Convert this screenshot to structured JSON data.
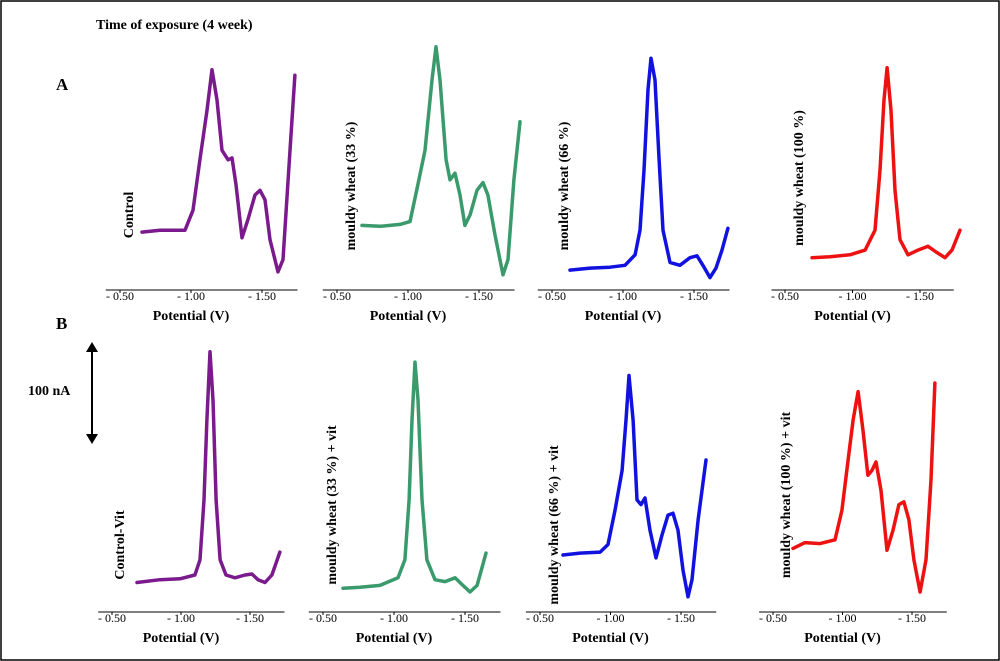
{
  "title": "Time of exposure (4 week)",
  "panel_labels": [
    "A",
    "B"
  ],
  "scale_bar": "100 nA",
  "chart_data": [
    {
      "type": "line",
      "xlabel": "Potential (V)",
      "xlim": [
        -0.4,
        -1.75
      ],
      "ylim": [
        0,
        280
      ],
      "xticks": [
        {
          "value": -0.5,
          "label": "- 0.50"
        },
        {
          "value": -1.0,
          "label": "- 1.00"
        },
        {
          "value": -1.5,
          "label": "- 1.50"
        }
      ],
      "x": [
        -0.655,
        -0.782,
        -0.958,
        -1.014,
        -1.063,
        -1.113,
        -1.148,
        -1.183,
        -1.218,
        -1.261,
        -1.289,
        -1.317,
        -1.359,
        -1.401,
        -1.451,
        -1.486,
        -1.521,
        -1.556,
        -1.613,
        -1.648,
        -1.697,
        -1.732
      ],
      "series": [
        {
          "name": "Control",
          "color": "#7b1a8c",
          "values": [
            61,
            63,
            63,
            84,
            137,
            189,
            232,
            200,
            147,
            137,
            139,
            111,
            55,
            74,
            100,
            105,
            95,
            53,
            19,
            32,
            147,
            226
          ]
        }
      ]
    },
    {
      "type": "line",
      "xlabel": "Potential (V)",
      "xlim": [
        -0.4,
        -1.75
      ],
      "ylim": [
        0,
        280
      ],
      "xticks": [
        {
          "value": -0.5,
          "label": "- 0.50"
        },
        {
          "value": -1.0,
          "label": "- 1.00"
        },
        {
          "value": -1.5,
          "label": "- 1.50"
        }
      ],
      "x": [
        -0.676,
        -0.803,
        -0.944,
        -1.014,
        -1.07,
        -1.12,
        -1.169,
        -1.197,
        -1.225,
        -1.268,
        -1.296,
        -1.331,
        -1.366,
        -1.401,
        -1.437,
        -1.486,
        -1.528,
        -1.563,
        -1.613,
        -1.669,
        -1.704,
        -1.746,
        -1.789
      ],
      "series": [
        {
          "name": "mouldy wheat (33 %)",
          "color": "#3a9a6c",
          "values": [
            68,
            67,
            69,
            72,
            111,
            147,
            221,
            256,
            221,
            137,
            116,
            123,
            100,
            68,
            79,
            105,
            113,
            100,
            58,
            16,
            32,
            116,
            177
          ]
        }
      ]
    },
    {
      "type": "line",
      "xlabel": "Potential (V)",
      "xlim": [
        -0.4,
        -1.75
      ],
      "ylim": [
        0,
        280
      ],
      "xticks": [
        {
          "value": -0.5,
          "label": "- 0.50"
        },
        {
          "value": -1.0,
          "label": "- 1.00"
        },
        {
          "value": -1.5,
          "label": "- 1.50"
        }
      ],
      "x": [
        -0.627,
        -0.768,
        -0.908,
        -1.014,
        -1.085,
        -1.12,
        -1.148,
        -1.176,
        -1.197,
        -1.225,
        -1.254,
        -1.282,
        -1.331,
        -1.401,
        -1.472,
        -1.521,
        -1.563,
        -1.613,
        -1.655,
        -1.697,
        -1.739
      ],
      "series": [
        {
          "name": "mouldy wheat (66 %)",
          "color": "#1212e0",
          "values": [
            21,
            23,
            24,
            26,
            37,
            63,
            126,
            211,
            244,
            221,
            137,
            63,
            29,
            26,
            34,
            36,
            26,
            13,
            23,
            42,
            65
          ]
        }
      ]
    },
    {
      "type": "line",
      "xlabel": "Potential (V)",
      "xlim": [
        -0.4,
        -1.75
      ],
      "ylim": [
        0,
        280
      ],
      "xticks": [
        {
          "value": -0.5,
          "label": "- 0.50"
        },
        {
          "value": -1.0,
          "label": "- 1.00"
        },
        {
          "value": -1.5,
          "label": "- 1.50"
        }
      ],
      "x": [
        -0.7,
        -0.833,
        -0.981,
        -1.093,
        -1.167,
        -1.204,
        -1.233,
        -1.256,
        -1.285,
        -1.315,
        -1.352,
        -1.411,
        -1.485,
        -1.559,
        -1.619,
        -1.685,
        -1.737,
        -1.796
      ],
      "series": [
        {
          "name": "mouldy wheat (100 %)",
          "color": "#ee1111",
          "values": [
            34,
            35,
            37,
            42,
            63,
            126,
            200,
            234,
            189,
            105,
            53,
            37,
            42,
            46,
            40,
            34,
            42,
            63
          ]
        }
      ]
    },
    {
      "type": "line",
      "xlabel": "Potential (V)",
      "xlim": [
        -0.4,
        -1.75
      ],
      "ylim": [
        0,
        280
      ],
      "xticks": [
        {
          "value": -0.5,
          "label": "- 0.50"
        },
        {
          "value": -1.0,
          "label": "- 1.00"
        },
        {
          "value": -1.5,
          "label": "- 1.50"
        }
      ],
      "x": [
        -0.681,
        -0.848,
        -0.993,
        -1.101,
        -1.138,
        -1.167,
        -1.188,
        -1.21,
        -1.232,
        -1.254,
        -1.283,
        -1.326,
        -1.391,
        -1.464,
        -1.514,
        -1.558,
        -1.609,
        -1.659,
        -1.717
      ],
      "series": [
        {
          "name": "Control-Vit",
          "color": "#7b1a8c",
          "values": [
            31,
            34,
            35,
            39,
            55,
            118,
            202,
            274,
            223,
            118,
            55,
            39,
            36,
            39,
            40,
            34,
            31,
            39,
            63
          ]
        }
      ]
    },
    {
      "type": "line",
      "xlabel": "Potential (V)",
      "xlim": [
        -0.4,
        -1.75
      ],
      "ylim": [
        0,
        280
      ],
      "xticks": [
        {
          "value": -0.5,
          "label": "- 0.50"
        },
        {
          "value": -1.0,
          "label": "- 1.00"
        },
        {
          "value": -1.5,
          "label": "- 1.50"
        }
      ],
      "x": [
        -0.641,
        -0.761,
        -0.901,
        -1.028,
        -1.077,
        -1.106,
        -1.127,
        -1.148,
        -1.169,
        -1.197,
        -1.232,
        -1.289,
        -1.359,
        -1.43,
        -1.479,
        -1.535,
        -1.585,
        -1.648
      ],
      "series": [
        {
          "name": "mouldy wheat (33 %) + vit",
          "color": "#3a9a6c",
          "values": [
            25,
            26,
            28,
            36,
            55,
            118,
            202,
            263,
            223,
            118,
            55,
            34,
            32,
            36,
            29,
            21,
            28,
            62
          ]
        }
      ]
    },
    {
      "type": "line",
      "xlabel": "Potential (V)",
      "xlim": [
        -0.4,
        -1.75
      ],
      "ylim": [
        0,
        280
      ],
      "xticks": [
        {
          "value": -0.5,
          "label": "- 0.50"
        },
        {
          "value": -1.0,
          "label": "- 1.00"
        },
        {
          "value": -1.5,
          "label": "- 1.50"
        }
      ],
      "x": [
        -0.663,
        -0.784,
        -0.926,
        -0.982,
        -1.032,
        -1.082,
        -1.11,
        -1.131,
        -1.16,
        -1.188,
        -1.216,
        -1.245,
        -1.28,
        -1.323,
        -1.365,
        -1.408,
        -1.443,
        -1.479,
        -1.514,
        -1.55,
        -1.578,
        -1.621,
        -1.677
      ],
      "series": [
        {
          "name": "mouldy wheat (66 %) + vit",
          "color": "#1212e0",
          "values": [
            60,
            62,
            63,
            71,
            107,
            149,
            202,
            249,
            202,
            118,
            113,
            120,
            86,
            57,
            81,
            102,
            104,
            86,
            44,
            16,
            34,
            97,
            160
          ]
        }
      ]
    },
    {
      "type": "line",
      "xlabel": "Potential (V)",
      "xlim": [
        -0.4,
        -1.75
      ],
      "ylim": [
        0,
        280
      ],
      "xticks": [
        {
          "value": -0.5,
          "label": "- 0.50"
        },
        {
          "value": -1.0,
          "label": "- 1.00"
        },
        {
          "value": -1.5,
          "label": "- 1.50"
        }
      ],
      "x": [
        -0.644,
        -0.73,
        -0.838,
        -0.946,
        -0.996,
        -1.04,
        -1.076,
        -1.112,
        -1.147,
        -1.183,
        -1.212,
        -1.241,
        -1.277,
        -1.32,
        -1.363,
        -1.406,
        -1.442,
        -1.478,
        -1.514,
        -1.558,
        -1.601,
        -1.637,
        -1.665
      ],
      "series": [
        {
          "name": "mouldy wheat (100 %) + vit",
          "color": "#ee1111",
          "values": [
            67,
            73,
            72,
            76,
            107,
            160,
            202,
            232,
            192,
            144,
            149,
            158,
            128,
            65,
            86,
            113,
            116,
            97,
            55,
            21,
            55,
            139,
            241
          ]
        }
      ]
    }
  ]
}
